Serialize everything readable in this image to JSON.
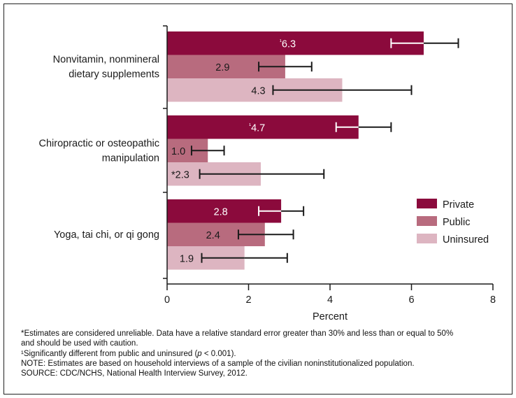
{
  "chart_data": {
    "type": "bar",
    "orientation": "horizontal",
    "xlabel": "Percent",
    "xlim": [
      0,
      8
    ],
    "xticks": [
      0,
      2,
      4,
      6,
      8
    ],
    "categories": [
      [
        "Nonvitamin, nonmineral",
        "dietary supplements"
      ],
      [
        "Chiropractic or osteopathic",
        "manipulation"
      ],
      [
        "Yoga, tai chi, or qi gong"
      ]
    ],
    "series": [
      {
        "name": "Private",
        "color": "#8b0a3c",
        "values": [
          6.3,
          4.7,
          2.8
        ],
        "labels": [
          "¹6.3",
          "¹4.7",
          "2.8"
        ],
        "ci": [
          [
            5.5,
            7.15
          ],
          [
            4.15,
            5.5
          ],
          [
            2.25,
            3.35
          ]
        ]
      },
      {
        "name": "Public",
        "color": "#b86b7e",
        "values": [
          2.9,
          1.0,
          2.4
        ],
        "labels": [
          "2.9",
          "1.0",
          "2.4"
        ],
        "ci": [
          [
            2.25,
            3.55
          ],
          [
            0.6,
            1.4
          ],
          [
            1.75,
            3.1
          ]
        ]
      },
      {
        "name": "Uninsured",
        "color": "#ddb5c1",
        "values": [
          4.3,
          2.3,
          1.9
        ],
        "labels": [
          "4.3",
          "*2.3",
          "1.9"
        ],
        "ci": [
          [
            2.6,
            6.0
          ],
          [
            0.8,
            3.85
          ],
          [
            0.85,
            2.95
          ]
        ]
      }
    ],
    "legend_position": "right"
  },
  "footnotes": [
    "*Estimates are considered unreliable. Data have a relative standard error greater than 30% and less than or equal to 50%",
    "and should be used with caution.",
    "¹Significantly different from public and uninsured (p < 0.001).",
    "NOTE: Estimates are based on household interviews of a sample of the civilian noninstitutionalized population.",
    "SOURCE: CDC/NCHS, National Health Interview Survey, 2012."
  ]
}
